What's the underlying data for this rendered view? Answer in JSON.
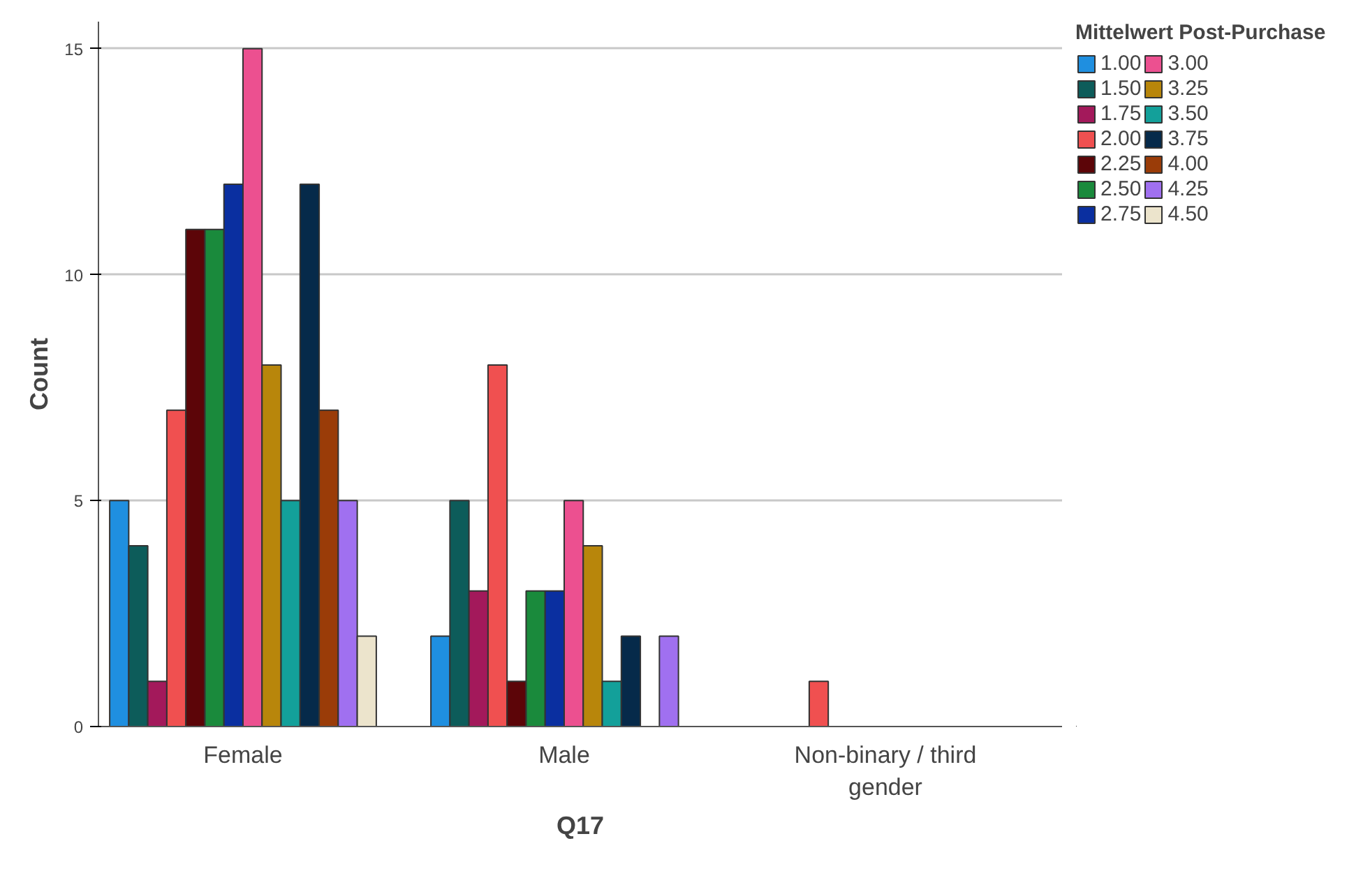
{
  "chart_data": {
    "type": "bar",
    "xlabel": "Q17",
    "ylabel": "Count",
    "legend_title": "Mittelwert Post-Purchase",
    "categories": [
      "Female",
      "Male",
      "Non-binary / third gender"
    ],
    "ylim": [
      0,
      15.6
    ],
    "yticks": [
      0,
      5,
      10,
      15
    ],
    "grid": "y",
    "legend": "top right",
    "series": [
      {
        "name": "1.00",
        "color": "#1f8fe0",
        "values": [
          5,
          2,
          null
        ]
      },
      {
        "name": "1.50",
        "color": "#0d5c5a",
        "values": [
          4,
          5,
          null
        ]
      },
      {
        "name": "1.75",
        "color": "#a3195b",
        "values": [
          1,
          3,
          null
        ]
      },
      {
        "name": "2.00",
        "color": "#f05050",
        "values": [
          7,
          8,
          1
        ]
      },
      {
        "name": "2.25",
        "color": "#5c0508",
        "values": [
          11,
          1,
          null
        ]
      },
      {
        "name": "2.50",
        "color": "#1a8a3c",
        "values": [
          11,
          3,
          null
        ]
      },
      {
        "name": "2.75",
        "color": "#0a2fa0",
        "values": [
          12,
          3,
          null
        ]
      },
      {
        "name": "3.00",
        "color": "#ec5090",
        "values": [
          15,
          5,
          null
        ]
      },
      {
        "name": "3.25",
        "color": "#b8860b",
        "values": [
          8,
          4,
          null
        ]
      },
      {
        "name": "3.50",
        "color": "#13a09a",
        "values": [
          5,
          1,
          null
        ]
      },
      {
        "name": "3.75",
        "color": "#062a4a",
        "values": [
          12,
          2,
          null
        ]
      },
      {
        "name": "4.00",
        "color": "#9a3c08",
        "values": [
          7,
          null,
          null
        ]
      },
      {
        "name": "4.25",
        "color": "#a070f0",
        "values": [
          5,
          2,
          null
        ]
      },
      {
        "name": "4.50",
        "color": "#ece4cc",
        "values": [
          2,
          null,
          null
        ]
      }
    ]
  }
}
